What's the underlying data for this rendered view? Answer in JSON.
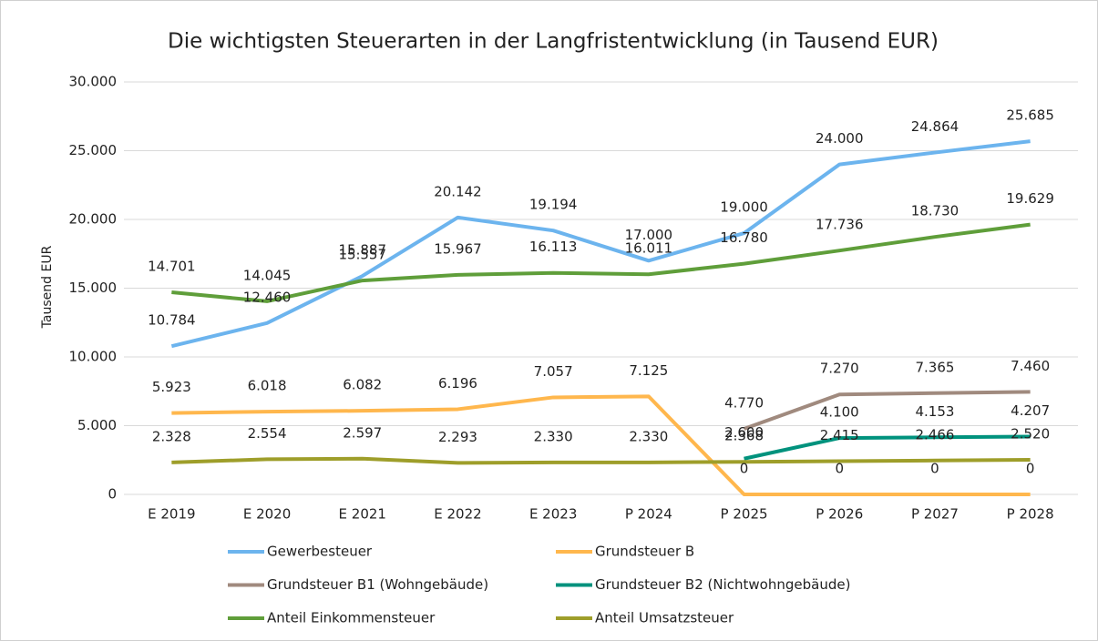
{
  "chart_data": {
    "type": "line",
    "title": "Die wichtigsten Steuerarten in der Langfristentwicklung (in Tausend EUR)",
    "y_label": "Tausend EUR",
    "categories": [
      "E 2019",
      "E 2020",
      "E 2021",
      "E 2022",
      "E 2023",
      "P 2024",
      "P 2025",
      "P 2026",
      "P 2027",
      "P 2028"
    ],
    "ylim": [
      0,
      30000
    ],
    "yticks": [
      0,
      {
        "value": 5000,
        "label": "5.000"
      },
      {
        "value": 10000,
        "label": "10.000"
      },
      {
        "value": 15000,
        "label": "15.000"
      },
      {
        "value": 20000,
        "label": "20.000"
      },
      {
        "value": 25000,
        "label": "25.000"
      },
      {
        "value": 30000,
        "label": "30.000"
      }
    ],
    "grid": true,
    "legend": "bottom",
    "series": [
      {
        "name": "Gewerbesteuer",
        "color": "#6cb4ee",
        "values": [
          10784,
          12460,
          15887,
          20142,
          19194,
          17000,
          19000,
          24000,
          24864,
          25685
        ],
        "value_labels": [
          "10.784",
          "12.460",
          "15.887",
          "20.142",
          "19.194",
          "17.000",
          "19.000",
          "24.000",
          "24.864",
          "25.685"
        ]
      },
      {
        "name": "Grundsteuer B",
        "color": "#ffb74d",
        "values": [
          5923,
          6018,
          6082,
          6196,
          7057,
          7125,
          0,
          0,
          0,
          0
        ],
        "value_labels": [
          "5.923",
          "6.018",
          "6.082",
          "6.196",
          "7.057",
          "7.125",
          "0",
          "0",
          "0",
          "0"
        ]
      },
      {
        "name": "Grundsteuer B1 (Wohngebäude)",
        "color": "#a08a7e",
        "values": [
          null,
          null,
          null,
          null,
          null,
          null,
          4770,
          7270,
          7365,
          7460
        ],
        "value_labels": [
          null,
          null,
          null,
          null,
          null,
          null,
          "4.770",
          "7.270",
          "7.365",
          "7.460"
        ]
      },
      {
        "name": "Grundsteuer B2 (Nichtwohngebäude)",
        "color": "#00927d",
        "values": [
          null,
          null,
          null,
          null,
          null,
          null,
          2600,
          4100,
          4153,
          4207
        ],
        "value_labels": [
          null,
          null,
          null,
          null,
          null,
          null,
          "2.600",
          "4.100",
          "4.153",
          "4.207"
        ]
      },
      {
        "name": "Anteil Einkommensteuer",
        "color": "#5f9e3a",
        "values": [
          14701,
          14045,
          15557,
          15967,
          16113,
          16011,
          16780,
          17736,
          18730,
          19629
        ],
        "value_labels": [
          "14.701",
          "14.045",
          "15.557",
          "15.967",
          "16.113",
          "16.011",
          "16.780",
          "17.736",
          "18.730",
          "19.629"
        ]
      },
      {
        "name": "Anteil Umsatzsteuer",
        "color": "#9e9e2a",
        "values": [
          2328,
          2554,
          2597,
          2293,
          2330,
          2330,
          2368,
          2415,
          2466,
          2520
        ],
        "value_labels": [
          "2.328",
          "2.554",
          "2.597",
          "2.293",
          "2.330",
          "2.330",
          "2.368",
          "2.415",
          "2.466",
          "2.520"
        ]
      }
    ]
  }
}
